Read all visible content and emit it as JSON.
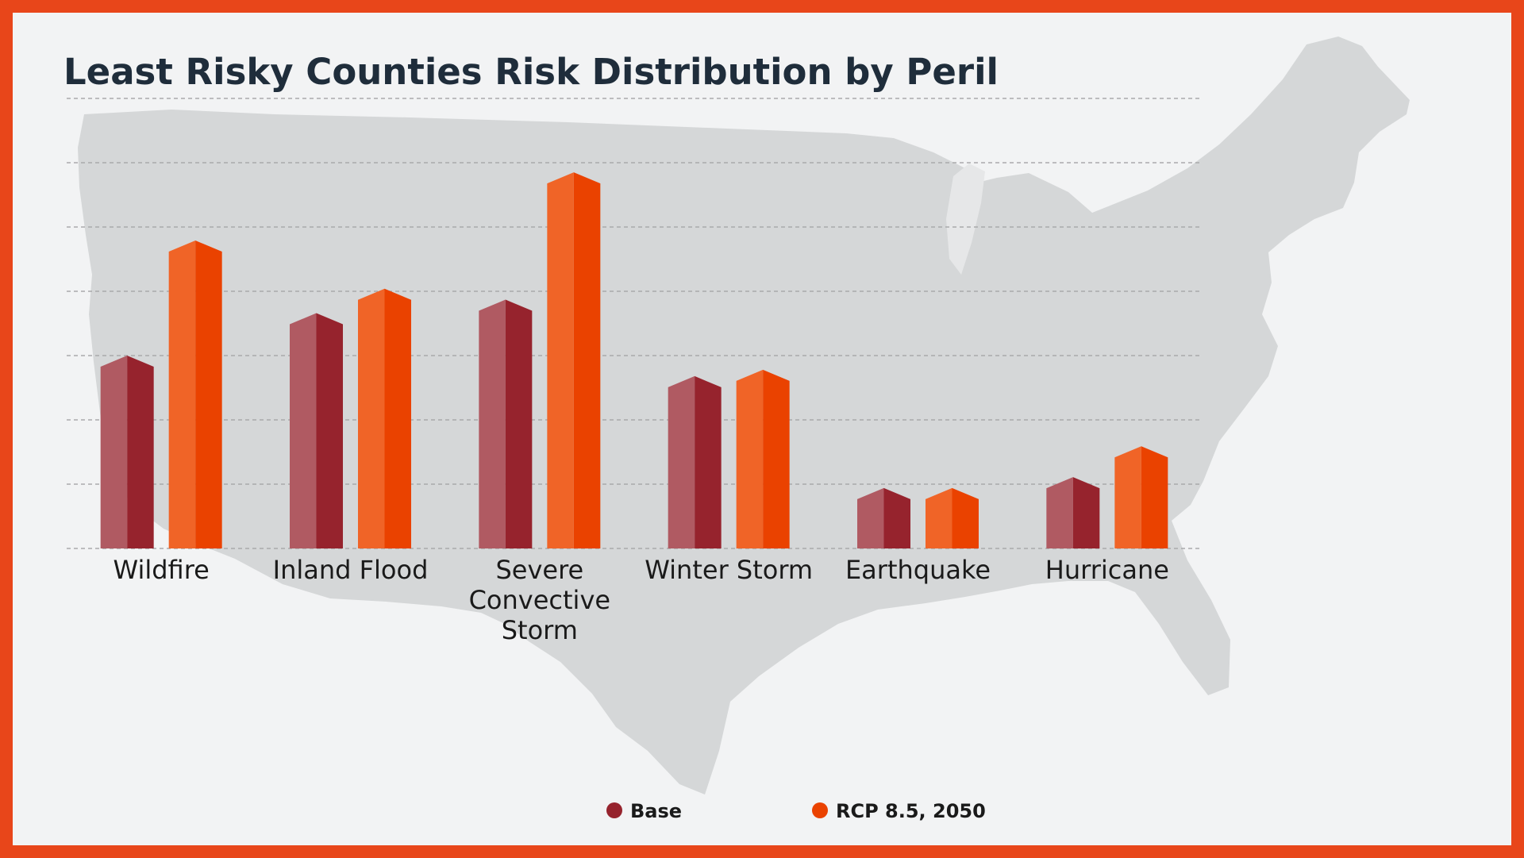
{
  "title": "Least Risky Counties Risk Distribution by Peril",
  "colors": {
    "frame": "#e8461a",
    "background": "#f2f3f4",
    "map": "#d5d7d8",
    "base_light": "#b05a62",
    "base_dark": "#96232d",
    "rcp_light": "#f06427",
    "rcp_dark": "#ea4200",
    "title": "#1f2d3b"
  },
  "background_image": "us-map-silhouette",
  "chart_data": {
    "type": "bar",
    "title": "Least Risky Counties Risk Distribution by Peril",
    "xlabel": "",
    "ylabel": "",
    "categories": [
      [
        "Wildfire"
      ],
      [
        "Inland Flood"
      ],
      [
        "Severe",
        "Convective",
        "Storm"
      ],
      [
        "Winter Storm"
      ],
      [
        "Earthquake"
      ],
      [
        "Hurricane"
      ]
    ],
    "series": [
      {
        "name": "Base",
        "values": [
          30,
          36.6,
          38.7,
          26.8,
          9.4,
          11.1
        ]
      },
      {
        "name": "RCP 8.5, 2050",
        "values": [
          47.9,
          40.4,
          58.5,
          27.8,
          9.4,
          15.9
        ]
      }
    ],
    "ylim": [
      0,
      70
    ],
    "gridlines": 7,
    "grid": true,
    "y_tick_labels": false,
    "legend_position": "bottom-center"
  },
  "legend": {
    "items": [
      {
        "label": "Base",
        "color": "#96232d"
      },
      {
        "label": "RCP 8.5, 2050",
        "color": "#ea4200"
      }
    ]
  }
}
